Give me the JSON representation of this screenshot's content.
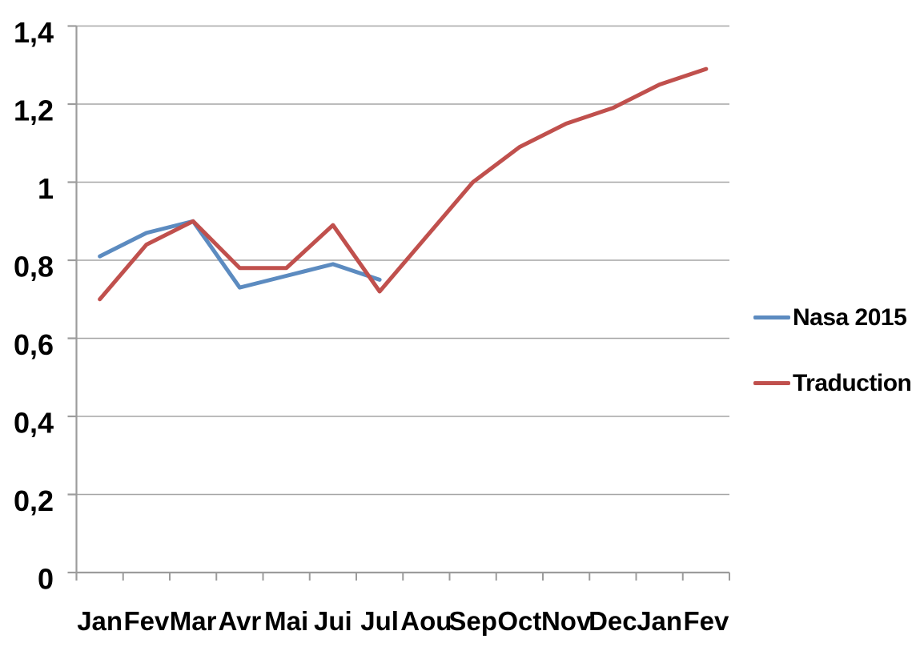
{
  "chart_data": {
    "type": "line",
    "title": "",
    "xlabel": "",
    "ylabel": "",
    "categories": [
      "Jan",
      "Fev",
      "Mar",
      "Avr",
      "Mai",
      "Jui",
      "Jul",
      "Aou",
      "Sep",
      "Oct",
      "Nov",
      "Dec",
      "Jan",
      "Fev"
    ],
    "series": [
      {
        "name": "Nasa 2015",
        "color": "#5C8BC0",
        "values": [
          0.81,
          0.87,
          0.9,
          0.73,
          0.76,
          0.79,
          0.75,
          null,
          null,
          null,
          null,
          null,
          null,
          null
        ]
      },
      {
        "name": "Traduction",
        "color": "#C0504D",
        "values": [
          0.7,
          0.84,
          0.9,
          0.78,
          0.78,
          0.89,
          0.72,
          0.86,
          1.0,
          1.09,
          1.15,
          1.19,
          1.25,
          1.29
        ]
      }
    ],
    "ylim": [
      0,
      1.4
    ],
    "yticks": [
      {
        "value": 0.0,
        "label": "0"
      },
      {
        "value": 0.2,
        "label": "0,2"
      },
      {
        "value": 0.4,
        "label": "0,4"
      },
      {
        "value": 0.6,
        "label": "0,6"
      },
      {
        "value": 0.8,
        "label": "0,8"
      },
      {
        "value": 1.0,
        "label": "1"
      },
      {
        "value": 1.2,
        "label": "1,2"
      },
      {
        "value": 1.4,
        "label": "1,4"
      }
    ],
    "grid": true,
    "grid_color": "#A6A6A6",
    "axis_color": "#9C9C9C",
    "legend_position": "right"
  }
}
